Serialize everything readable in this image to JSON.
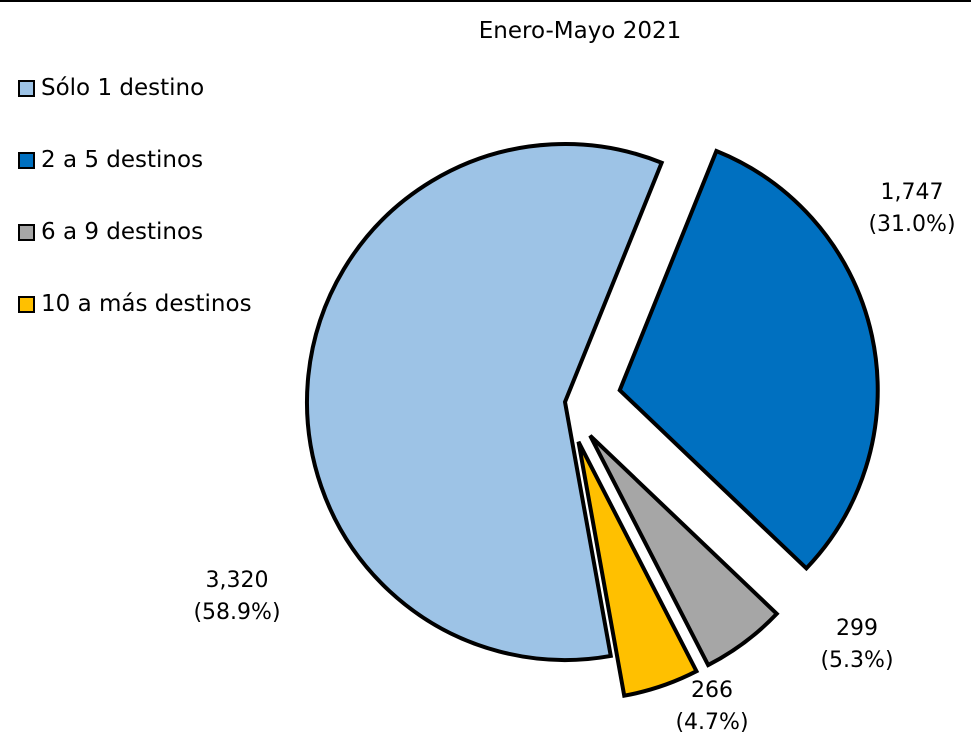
{
  "chart_data": {
    "type": "pie",
    "title": "Enero-Mayo 2021",
    "legend_position": "left",
    "exploded": true,
    "slices": [
      {
        "name": "Sólo 1 destino",
        "value": 3320,
        "value_label": "3,320",
        "percent_label": "(58.9%)",
        "color": "#9dc3e6"
      },
      {
        "name": "2 a 5 destinos",
        "value": 1747,
        "value_label": "1,747",
        "percent_label": "(31.0%)",
        "color": "#0070c0"
      },
      {
        "name": "6 a 9 destinos",
        "value": 299,
        "value_label": "299",
        "percent_label": "(5.3%)",
        "color": "#a6a6a6"
      },
      {
        "name": "10 a más destinos",
        "value": 266,
        "value_label": "266",
        "percent_label": "(4.7%)",
        "color": "#ffc000"
      }
    ]
  }
}
